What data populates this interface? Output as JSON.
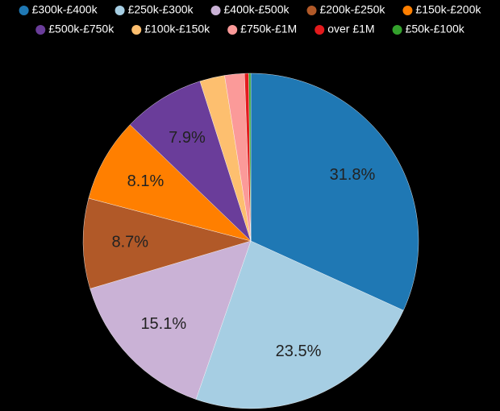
{
  "chart_data": {
    "type": "pie",
    "categories": [
      "£300k-£400k",
      "£250k-£300k",
      "£400k-£500k",
      "£200k-£250k",
      "£150k-£200k",
      "£500k-£750k",
      "£100k-£150k",
      "£750k-£1M",
      "over £1M",
      "£50k-£100k"
    ],
    "values": [
      31.8,
      23.5,
      15.1,
      8.7,
      8.1,
      7.9,
      2.4,
      1.9,
      0.4,
      0.2
    ],
    "value_labels": [
      "31.8%",
      "23.5%",
      "15.1%",
      "8.7%",
      "8.1%",
      "7.9%",
      null,
      null,
      null,
      null
    ],
    "colors": [
      "#1f78b4",
      "#a6cee3",
      "#cab2d6",
      "#b15928",
      "#ff7f00",
      "#6a3d9a",
      "#fdbf6f",
      "#fb9a99",
      "#e31a1c",
      "#33a02c"
    ],
    "legend": "top"
  }
}
